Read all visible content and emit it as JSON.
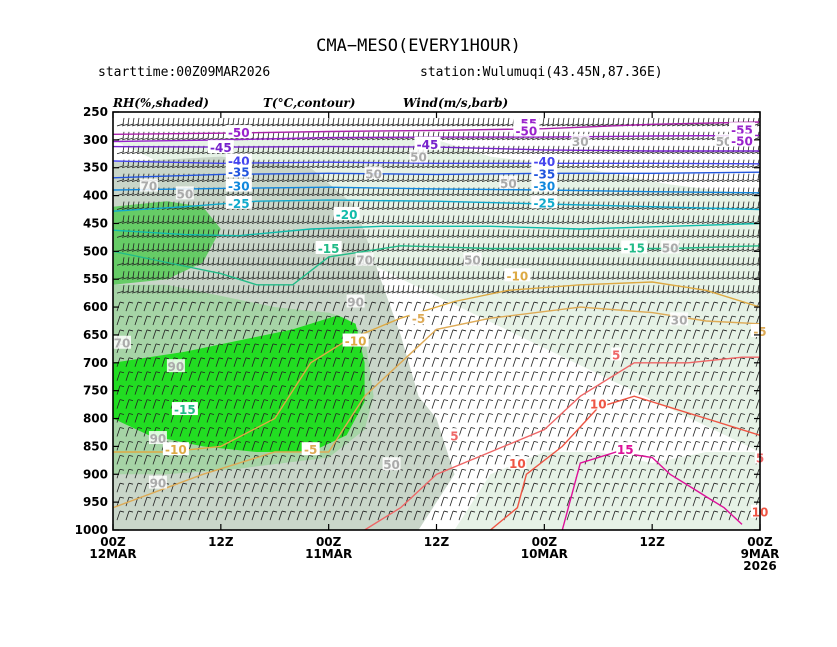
{
  "chart_data": {
    "type": "heatmap",
    "title": "CMA−MESO(EVERY1HOUR)",
    "subtitle_left": "starttime:00Z09MAR2026",
    "subtitle_right": "station:Wulumuqi(43.45N,87.36E)",
    "variable_labels": [
      "RH(%,shaded)",
      "T(°C,contour)",
      "Wind(m/s,barb)"
    ],
    "y_ticks": [
      "250",
      "300",
      "350",
      "400",
      "450",
      "500",
      "550",
      "600",
      "650",
      "700",
      "750",
      "800",
      "850",
      "900",
      "950",
      "1000"
    ],
    "y_values": [
      250,
      300,
      350,
      400,
      450,
      500,
      550,
      600,
      650,
      700,
      750,
      800,
      850,
      900,
      950,
      1000
    ],
    "ylim": [
      250,
      1000
    ],
    "x_ticks": [
      {
        "l1": "00Z",
        "l2": "12MAR",
        "l3": "",
        "hours": 72
      },
      {
        "l1": "12Z",
        "l2": "",
        "l3": "",
        "hours": 60
      },
      {
        "l1": "00Z",
        "l2": "11MAR",
        "l3": "",
        "hours": 48
      },
      {
        "l1": "12Z",
        "l2": "",
        "l3": "",
        "hours": 36
      },
      {
        "l1": "00Z",
        "l2": "10MAR",
        "l3": "",
        "hours": 24
      },
      {
        "l1": "12Z",
        "l2": "",
        "l3": "",
        "hours": 12
      },
      {
        "l1": "00Z",
        "l2": "9MAR",
        "l3": "2026",
        "hours": 0
      }
    ],
    "xlim_hours": [
      72,
      0
    ],
    "rh_regions": [
      {
        "level": 90,
        "color": "#22dd22",
        "poly": [
          [
            72,
            700
          ],
          [
            68,
            690
          ],
          [
            64,
            680
          ],
          [
            58,
            660
          ],
          [
            52,
            640
          ],
          [
            47,
            615
          ],
          [
            45,
            630
          ],
          [
            44,
            700
          ],
          [
            44,
            770
          ],
          [
            46,
            830
          ],
          [
            50,
            860
          ],
          [
            56,
            860
          ],
          [
            62,
            850
          ],
          [
            68,
            830
          ],
          [
            72,
            800
          ]
        ]
      },
      {
        "level": 80,
        "color": "#66cc66",
        "poly": [
          [
            72,
            420
          ],
          [
            66,
            410
          ],
          [
            62,
            420
          ],
          [
            60,
            460
          ],
          [
            62,
            520
          ],
          [
            66,
            550
          ],
          [
            72,
            560
          ]
        ]
      },
      {
        "level": 70,
        "color": "#a6d4a6",
        "poly": [
          [
            72,
            560
          ],
          [
            66,
            560
          ],
          [
            60,
            580
          ],
          [
            54,
            600
          ],
          [
            48,
            610
          ],
          [
            46,
            620
          ],
          [
            44,
            650
          ],
          [
            43,
            760
          ],
          [
            44,
            820
          ],
          [
            48,
            870
          ],
          [
            58,
            890
          ],
          [
            66,
            900
          ],
          [
            72,
            900
          ]
        ]
      },
      {
        "level": 50,
        "color": "#c9d6c9",
        "poly": [
          [
            72,
            340
          ],
          [
            60,
            330
          ],
          [
            50,
            350
          ],
          [
            45,
            420
          ],
          [
            42,
            560
          ],
          [
            40,
            650
          ],
          [
            38,
            760
          ],
          [
            36,
            800
          ],
          [
            34,
            900
          ],
          [
            38,
            1000
          ],
          [
            72,
            1000
          ]
        ]
      },
      {
        "level": 30,
        "color": "#e6f2e6",
        "poly": [
          [
            72,
            300
          ],
          [
            36,
            300
          ],
          [
            30,
            330
          ],
          [
            20,
            350
          ],
          [
            10,
            380
          ],
          [
            0,
            400
          ],
          [
            0,
            1000
          ],
          [
            34,
            1000
          ],
          [
            30,
            900
          ],
          [
            24,
            860
          ],
          [
            18,
            860
          ],
          [
            12,
            880
          ],
          [
            6,
            860
          ],
          [
            0,
            860
          ]
        ]
      }
    ],
    "temperature_contours": [
      {
        "value": -55,
        "color": "#aa22aa",
        "label": "-55",
        "points": [
          [
            72,
            290
          ],
          [
            60,
            288
          ],
          [
            48,
            285
          ],
          [
            36,
            283
          ],
          [
            24,
            280
          ],
          [
            12,
            272
          ],
          [
            0,
            268
          ]
        ]
      },
      {
        "value": -50,
        "color": "#9922cc",
        "label": "-50",
        "points": [
          [
            72,
            303
          ],
          [
            60,
            300
          ],
          [
            48,
            296
          ],
          [
            36,
            295
          ],
          [
            24,
            295
          ],
          [
            12,
            293
          ],
          [
            0,
            292
          ]
        ]
      },
      {
        "value": -45,
        "color": "#7722cc",
        "label": "-45",
        "points": [
          [
            72,
            312
          ],
          [
            60,
            313
          ],
          [
            48,
            312
          ],
          [
            36,
            313
          ],
          [
            24,
            318
          ],
          [
            12,
            320
          ],
          [
            0,
            320
          ]
        ]
      },
      {
        "value": -40,
        "color": "#4444ee",
        "label": "-40",
        "points": [
          [
            72,
            338
          ],
          [
            60,
            342
          ],
          [
            48,
            340
          ],
          [
            36,
            342
          ],
          [
            24,
            342
          ],
          [
            12,
            342
          ],
          [
            0,
            343
          ]
        ]
      },
      {
        "value": -35,
        "color": "#2255dd",
        "label": "-35",
        "points": [
          [
            72,
            368
          ],
          [
            60,
            362
          ],
          [
            48,
            360
          ],
          [
            36,
            362
          ],
          [
            24,
            360
          ],
          [
            12,
            360
          ],
          [
            0,
            358
          ]
        ]
      },
      {
        "value": -30,
        "color": "#1188dd",
        "label": "-30",
        "points": [
          [
            72,
            390
          ],
          [
            60,
            387
          ],
          [
            48,
            385
          ],
          [
            36,
            388
          ],
          [
            24,
            390
          ],
          [
            12,
            393
          ],
          [
            0,
            395
          ]
        ]
      },
      {
        "value": -25,
        "color": "#11aacc",
        "label": "-25",
        "points": [
          [
            72,
            428
          ],
          [
            64,
            420
          ],
          [
            56,
            410
          ],
          [
            48,
            408
          ],
          [
            36,
            410
          ],
          [
            24,
            415
          ],
          [
            12,
            420
          ],
          [
            0,
            425
          ]
        ]
      },
      {
        "value": -20,
        "color": "#11bbaa",
        "label": "-20",
        "points": [
          [
            72,
            462
          ],
          [
            64,
            470
          ],
          [
            58,
            472
          ],
          [
            50,
            460
          ],
          [
            42,
            455
          ],
          [
            30,
            455
          ],
          [
            20,
            460
          ],
          [
            10,
            455
          ],
          [
            0,
            450
          ]
        ]
      },
      {
        "value": -15,
        "color": "#22bb88",
        "label": "-15",
        "points": [
          [
            72,
            500
          ],
          [
            66,
            520
          ],
          [
            60,
            540
          ],
          [
            56,
            560
          ],
          [
            52,
            560
          ],
          [
            48,
            510
          ],
          [
            40,
            490
          ],
          [
            30,
            495
          ],
          [
            20,
            495
          ],
          [
            10,
            495
          ],
          [
            0,
            490
          ]
        ]
      },
      {
        "value": -10,
        "color": "#ddaa44",
        "label": "-10",
        "points": [
          [
            72,
            860
          ],
          [
            66,
            860
          ],
          [
            60,
            850
          ],
          [
            54,
            800
          ],
          [
            50,
            700
          ],
          [
            46,
            660
          ],
          [
            40,
            620
          ],
          [
            34,
            590
          ],
          [
            28,
            570
          ],
          [
            20,
            560
          ],
          [
            12,
            555
          ],
          [
            6,
            570
          ],
          [
            0,
            600
          ]
        ]
      },
      {
        "value": -5,
        "color": "#ddaa55",
        "label": "-5",
        "points": [
          [
            72,
            960
          ],
          [
            62,
            900
          ],
          [
            54,
            860
          ],
          [
            48,
            860
          ],
          [
            44,
            760
          ],
          [
            40,
            700
          ],
          [
            36,
            640
          ],
          [
            30,
            620
          ],
          [
            20,
            600
          ],
          [
            12,
            610
          ],
          [
            6,
            625
          ],
          [
            0,
            630
          ]
        ]
      },
      {
        "value": 5,
        "color": "#ee6666",
        "label": "5",
        "points": [
          [
            44,
            1000
          ],
          [
            40,
            960
          ],
          [
            36,
            900
          ],
          [
            30,
            860
          ],
          [
            24,
            820
          ],
          [
            20,
            760
          ],
          [
            14,
            700
          ],
          [
            8,
            700
          ],
          [
            2,
            690
          ],
          [
            0,
            690
          ]
        ]
      },
      {
        "value": 10,
        "color": "#ee5544",
        "label": "10",
        "points": [
          [
            30,
            1000
          ],
          [
            27,
            960
          ],
          [
            26,
            900
          ],
          [
            22,
            850
          ],
          [
            18,
            780
          ],
          [
            14,
            760
          ],
          [
            10,
            780
          ],
          [
            6,
            800
          ],
          [
            2,
            820
          ],
          [
            0,
            830
          ]
        ]
      },
      {
        "value": 15,
        "color": "#dd1199",
        "label": "15",
        "points": [
          [
            22,
            1000
          ],
          [
            21,
            940
          ],
          [
            20,
            880
          ],
          [
            16,
            860
          ],
          [
            12,
            870
          ],
          [
            10,
            900
          ],
          [
            8,
            920
          ],
          [
            6,
            940
          ],
          [
            4,
            960
          ],
          [
            2,
            990
          ]
        ]
      }
    ],
    "contour_labels": [
      {
        "text": "-55",
        "color": "#9922cc",
        "x": 26,
        "y": 270
      },
      {
        "text": "-50",
        "color": "#9922cc",
        "x": 26,
        "y": 283
      },
      {
        "text": "-50",
        "color": "#9922cc",
        "x": 58,
        "y": 286
      },
      {
        "text": "-55",
        "color": "#9922cc",
        "x": 2,
        "y": 281
      },
      {
        "text": "-50",
        "color": "#9922cc",
        "x": 2,
        "y": 301
      },
      {
        "text": "-45",
        "color": "#7722cc",
        "x": 37,
        "y": 307
      },
      {
        "text": "-45",
        "color": "#7722cc",
        "x": 60,
        "y": 313
      },
      {
        "text": "-40",
        "color": "#4444ee",
        "x": 58,
        "y": 337
      },
      {
        "text": "-40",
        "color": "#4444ee",
        "x": 24,
        "y": 338
      },
      {
        "text": "-35",
        "color": "#2255dd",
        "x": 58,
        "y": 357
      },
      {
        "text": "-35",
        "color": "#2255dd",
        "x": 24,
        "y": 360
      },
      {
        "text": "-30",
        "color": "#1188dd",
        "x": 58,
        "y": 382
      },
      {
        "text": "-30",
        "color": "#1188dd",
        "x": 24,
        "y": 382
      },
      {
        "text": "-25",
        "color": "#11aacc",
        "x": 58,
        "y": 413
      },
      {
        "text": "-25",
        "color": "#11aacc",
        "x": 24,
        "y": 412
      },
      {
        "text": "-20",
        "color": "#11bbaa",
        "x": 46,
        "y": 433
      },
      {
        "text": "-15",
        "color": "#22bb88",
        "x": 48,
        "y": 494
      },
      {
        "text": "-15",
        "color": "#22bb88",
        "x": 14,
        "y": 493
      },
      {
        "text": "-15",
        "color": "#22bb88",
        "x": 64,
        "y": 783
      },
      {
        "text": "-10",
        "color": "#ddaa44",
        "x": 27,
        "y": 543
      },
      {
        "text": "-10",
        "color": "#ddaa44",
        "x": 45,
        "y": 660
      },
      {
        "text": "-10",
        "color": "#ddaa44",
        "x": 65,
        "y": 855
      },
      {
        "text": "-5",
        "color": "#ddaa55",
        "x": 50,
        "y": 855
      },
      {
        "text": "-5",
        "color": "#ddaa55",
        "x": 38,
        "y": 620
      },
      {
        "text": "-5",
        "color": "#ddaa55",
        "x": 0,
        "y": 643
      },
      {
        "text": "5",
        "color": "#ee6666",
        "x": 34,
        "y": 830
      },
      {
        "text": "5",
        "color": "#ee6666",
        "x": 16,
        "y": 685
      },
      {
        "text": "5",
        "color": "#ee6666",
        "x": 0,
        "y": 870
      },
      {
        "text": "10",
        "color": "#ee5544",
        "x": 18,
        "y": 773
      },
      {
        "text": "10",
        "color": "#ee5544",
        "x": 27,
        "y": 880
      },
      {
        "text": "10",
        "color": "#ee5544",
        "x": 0,
        "y": 967
      },
      {
        "text": "15",
        "color": "#dd1199",
        "x": 15,
        "y": 855
      }
    ],
    "rh_labels": [
      {
        "text": "70",
        "x": 68,
        "y": 382
      },
      {
        "text": "50",
        "x": 64,
        "y": 396
      },
      {
        "text": "70",
        "x": 71,
        "y": 664
      },
      {
        "text": "90",
        "x": 65,
        "y": 706
      },
      {
        "text": "90",
        "x": 67,
        "y": 835
      },
      {
        "text": "90",
        "x": 67,
        "y": 915
      },
      {
        "text": "50",
        "x": 38,
        "y": 330
      },
      {
        "text": "50",
        "x": 43,
        "y": 360
      },
      {
        "text": "70",
        "x": 44,
        "y": 515
      },
      {
        "text": "90",
        "x": 45,
        "y": 590
      },
      {
        "text": "50",
        "x": 32,
        "y": 515
      },
      {
        "text": "50",
        "x": 28,
        "y": 377
      },
      {
        "text": "30",
        "x": 20,
        "y": 302
      },
      {
        "text": "50",
        "x": 4,
        "y": 302
      },
      {
        "text": "50",
        "x": 10,
        "y": 493
      },
      {
        "text": "30",
        "x": 9,
        "y": 622
      },
      {
        "text": "50",
        "x": 41,
        "y": 882
      }
    ]
  }
}
